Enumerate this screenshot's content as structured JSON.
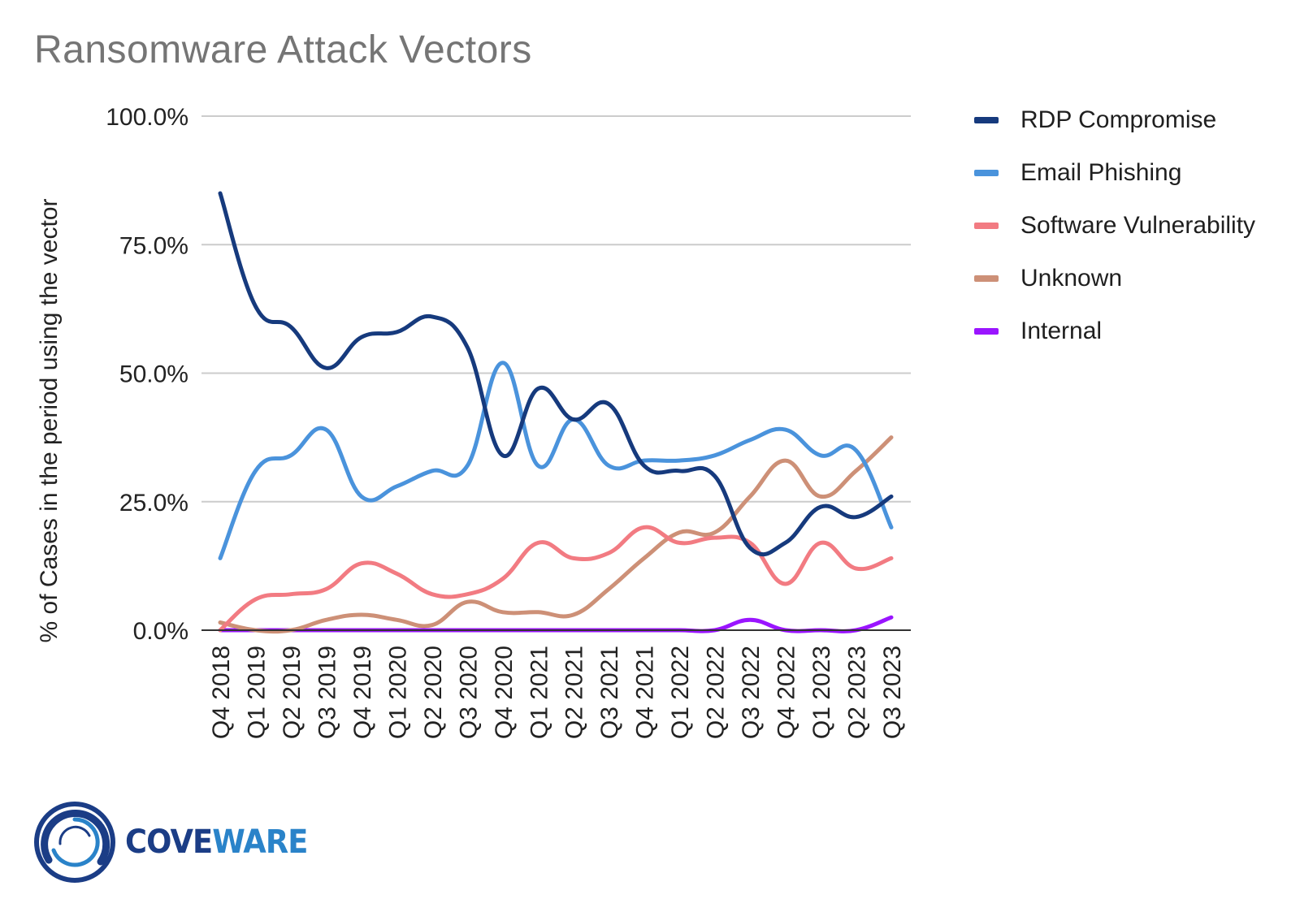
{
  "chart_data": {
    "type": "line",
    "title": "Ransomware Attack Vectors",
    "ylabel": "% of Cases in the period using the vector",
    "xlabel": "",
    "ylim": [
      0,
      100
    ],
    "yticks": [
      "0.0%",
      "25.0%",
      "50.0%",
      "75.0%",
      "100.0%"
    ],
    "ytick_values": [
      0,
      25,
      50,
      75,
      100
    ],
    "grid": true,
    "legend_position": "right",
    "categories": [
      "Q4 2018",
      "Q1 2019",
      "Q2 2019",
      "Q3 2019",
      "Q4 2019",
      "Q1 2020",
      "Q2 2020",
      "Q3 2020",
      "Q4 2020",
      "Q1 2021",
      "Q2 2021",
      "Q3 2021",
      "Q4 2021",
      "Q1 2022",
      "Q2 2022",
      "Q3 2022",
      "Q4 2022",
      "Q1 2023",
      "Q2 2023",
      "Q3 2023"
    ],
    "series": [
      {
        "name": "RDP Compromise",
        "color": "#163a7d",
        "values": [
          85,
          63,
          59,
          51,
          57,
          58,
          61,
          55,
          34,
          47,
          41,
          44,
          32,
          31,
          30,
          16,
          17,
          24,
          22,
          26
        ]
      },
      {
        "name": "Email Phishing",
        "color": "#4a93dc",
        "values": [
          14,
          31,
          34,
          39,
          26,
          28,
          31,
          32,
          52,
          32,
          41,
          32,
          33,
          33,
          34,
          37,
          39,
          34,
          35,
          20
        ]
      },
      {
        "name": "Software Vulnerability",
        "color": "#f27b82",
        "values": [
          0,
          6,
          7,
          8,
          13,
          11,
          7,
          7,
          10,
          17,
          14,
          15,
          20,
          17,
          18,
          17,
          9,
          17,
          12,
          14
        ]
      },
      {
        "name": "Unknown",
        "color": "#cd9077",
        "values": [
          1.5,
          0,
          0,
          2,
          3,
          2,
          1,
          5.5,
          3.5,
          3.5,
          3,
          8,
          14,
          19,
          19,
          26,
          33,
          26,
          31,
          37.5
        ]
      },
      {
        "name": "Internal",
        "color": "#9a15ff",
        "values": [
          0,
          0,
          0,
          0,
          0,
          0,
          0,
          0,
          0,
          0,
          0,
          0,
          0,
          0,
          0,
          2,
          0,
          0,
          0,
          2.5
        ]
      }
    ]
  },
  "brand": {
    "name_part1": "COVE",
    "name_part2": "WARE",
    "color_dark": "#1b3d86",
    "color_light": "#2a83c9"
  }
}
